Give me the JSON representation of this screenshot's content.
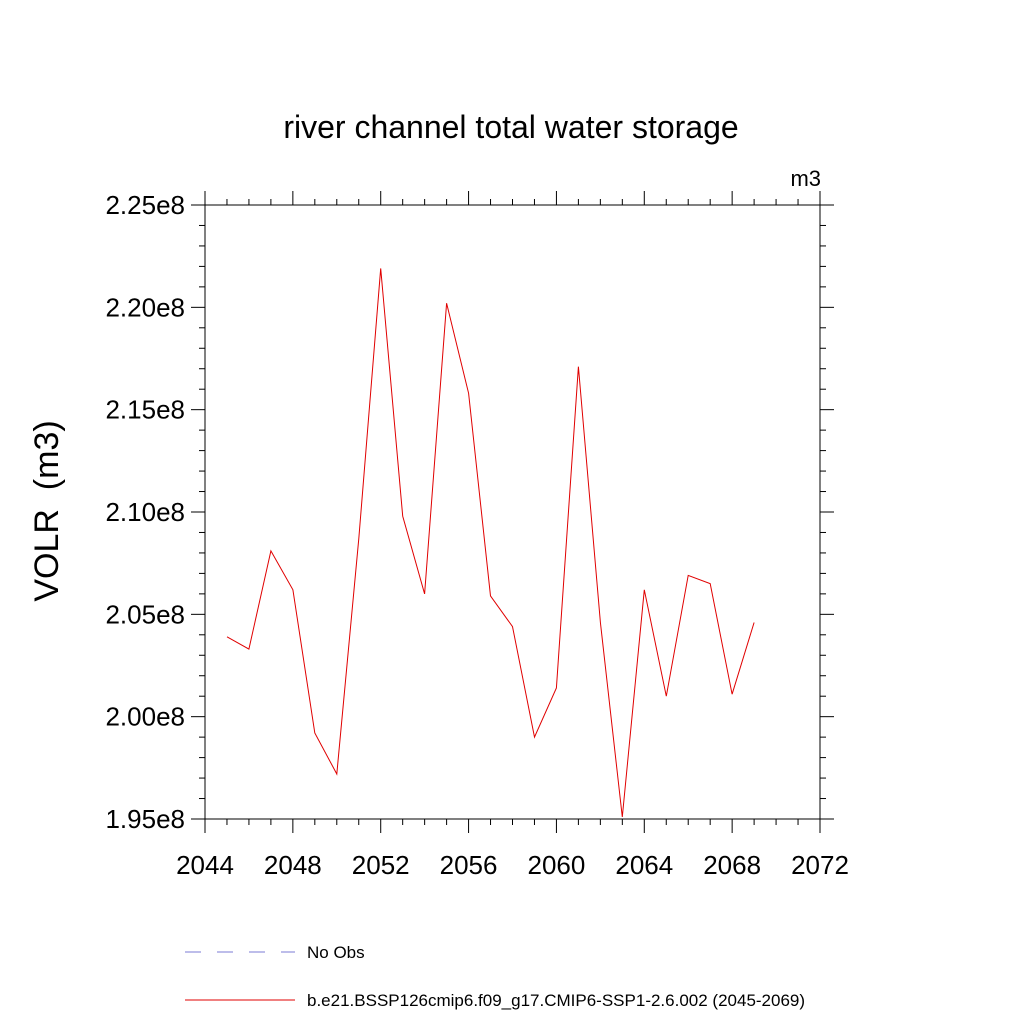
{
  "chart_data": {
    "type": "line",
    "title": "river channel total water storage",
    "units_label": "m3",
    "ylabel": "VOLR  (m3)",
    "xlabel": "",
    "xlim": [
      2044,
      2072
    ],
    "ylim": [
      195000000,
      225000000
    ],
    "x_ticks": [
      2044,
      2048,
      2052,
      2056,
      2060,
      2064,
      2068,
      2072
    ],
    "x_tick_labels": [
      "2044",
      "2048",
      "2052",
      "2056",
      "2060",
      "2064",
      "2068",
      "2072"
    ],
    "y_ticks": [
      195000000,
      200000000,
      205000000,
      210000000,
      215000000,
      220000000,
      225000000
    ],
    "y_tick_labels": [
      "1.95e8",
      "2.00e8",
      "2.05e8",
      "2.10e8",
      "2.15e8",
      "2.20e8",
      "2.25e8"
    ],
    "grid": false,
    "legend_position": "bottom",
    "series": [
      {
        "name": "b.e21.BSSP126cmip6.f09_g17.CMIP6-SSP1-2.6.002 (2045-2069)",
        "color": "#e00000",
        "x": [
          2045,
          2046,
          2047,
          2048,
          2049,
          2050,
          2051,
          2052,
          2053,
          2054,
          2055,
          2056,
          2057,
          2058,
          2059,
          2060,
          2061,
          2062,
          2063,
          2064,
          2065,
          2066,
          2067,
          2068,
          2069
        ],
        "y": [
          203900000,
          203300000,
          208100000,
          206200000,
          199200000,
          197200000,
          208700000,
          221900000,
          209800000,
          206000000,
          220200000,
          215800000,
          205900000,
          204400000,
          199000000,
          201400000,
          217100000,
          204600000,
          195100000,
          206200000,
          201000000,
          206900000,
          206500000,
          201100000,
          204600000
        ]
      }
    ],
    "legend": [
      {
        "label": "No Obs",
        "color": "#7b7bd6",
        "style": "dashed"
      },
      {
        "label": "b.e21.BSSP126cmip6.f09_g17.CMIP6-SSP1-2.6.002 (2045-2069)",
        "color": "#e00000",
        "style": "solid"
      }
    ]
  }
}
